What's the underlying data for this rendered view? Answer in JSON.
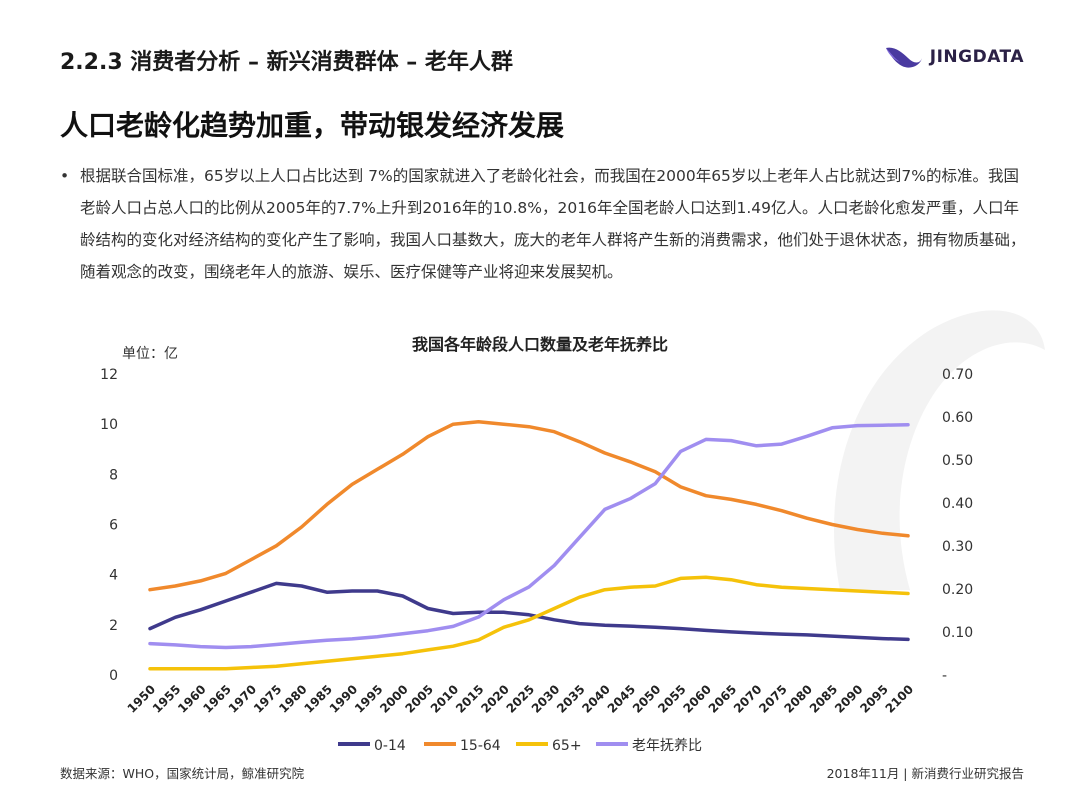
{
  "header": {
    "section_title": "2.2.3 消费者分析 – 新兴消费群体 – 老年人群",
    "logo_text": "JINGDATA",
    "headline": "人口老龄化趋势加重，带动银发经济发展"
  },
  "bullet": {
    "marker": "•",
    "text": "根据联合国标准，65岁以上人口占比达到 7%的国家就进入了老龄化社会，而我国在2000年65岁以上老年人占比就达到7%的标准。我国老龄人口占总人口的比例从2005年的7.7%上升到2016年的10.8%，2016年全国老龄人口达到1.49亿人。人口老龄化愈发严重，人口年龄结构的变化对经济结构的变化产生了影响，我国人口基数大，庞大的老年人群将产生新的消费需求，他们处于退休状态，拥有物质基础，随着观念的改变，围绕老年人的旅游、娱乐、医疗保健等产业将迎来发展契机。"
  },
  "chart_data": {
    "type": "line",
    "title": "我国各年龄段人口数量及老年抚养比",
    "unit_label": "单位：亿",
    "x": [
      "1950",
      "1955",
      "1960",
      "1965",
      "1970",
      "1975",
      "1980",
      "1985",
      "1990",
      "1995",
      "2000",
      "2005",
      "2010",
      "2015",
      "2020",
      "2025",
      "2030",
      "2035",
      "2040",
      "2045",
      "2050",
      "2055",
      "2060",
      "2065",
      "2070",
      "2075",
      "2080",
      "2085",
      "2090",
      "2095",
      "2100"
    ],
    "y_left": {
      "min": 0,
      "max": 12,
      "ticks": [
        "0",
        "2",
        "4",
        "6",
        "8",
        "10",
        "12"
      ]
    },
    "y_right": {
      "min": 0,
      "max": 0.7,
      "ticks": [
        "-",
        "0.10",
        "0.20",
        "0.30",
        "0.40",
        "0.50",
        "0.60",
        "0.70"
      ]
    },
    "legend_position": "bottom",
    "series": [
      {
        "name": "0-14",
        "axis": "left",
        "color": "#3f3a8c",
        "values": [
          1.85,
          2.3,
          2.6,
          2.95,
          3.3,
          3.65,
          3.55,
          3.3,
          3.35,
          3.35,
          3.15,
          2.65,
          2.45,
          2.5,
          2.5,
          2.4,
          2.2,
          2.05,
          1.98,
          1.95,
          1.9,
          1.85,
          1.78,
          1.72,
          1.67,
          1.63,
          1.6,
          1.55,
          1.5,
          1.45,
          1.42
        ]
      },
      {
        "name": "15-64",
        "axis": "left",
        "color": "#f0892c",
        "values": [
          3.4,
          3.55,
          3.75,
          4.05,
          4.6,
          5.15,
          5.9,
          6.8,
          7.6,
          8.2,
          8.8,
          9.5,
          10.0,
          10.1,
          10.0,
          9.9,
          9.7,
          9.3,
          8.85,
          8.5,
          8.1,
          7.5,
          7.15,
          7.0,
          6.8,
          6.55,
          6.25,
          6.0,
          5.8,
          5.65,
          5.55
        ]
      },
      {
        "name": "65+",
        "axis": "left",
        "color": "#f5c20a",
        "values": [
          0.25,
          0.25,
          0.25,
          0.25,
          0.3,
          0.35,
          0.45,
          0.55,
          0.65,
          0.75,
          0.85,
          1.0,
          1.15,
          1.4,
          1.9,
          2.2,
          2.65,
          3.1,
          3.4,
          3.5,
          3.55,
          3.85,
          3.9,
          3.8,
          3.6,
          3.5,
          3.45,
          3.4,
          3.35,
          3.3,
          3.25
        ]
      },
      {
        "name": "老年抚养比",
        "axis": "right",
        "color": "#a08ef0",
        "values": [
          0.073,
          0.07,
          0.066,
          0.064,
          0.066,
          0.071,
          0.076,
          0.081,
          0.084,
          0.089,
          0.096,
          0.103,
          0.113,
          0.135,
          0.175,
          0.205,
          0.255,
          0.32,
          0.385,
          0.41,
          0.445,
          0.52,
          0.548,
          0.545,
          0.533,
          0.537,
          0.555,
          0.575,
          0.58,
          0.581,
          0.582
        ]
      }
    ]
  },
  "footer": {
    "source": "数据来源：WHO，国家统计局，鲸准研究院",
    "report": "2018年11月 | 新消费行业研究报告"
  }
}
